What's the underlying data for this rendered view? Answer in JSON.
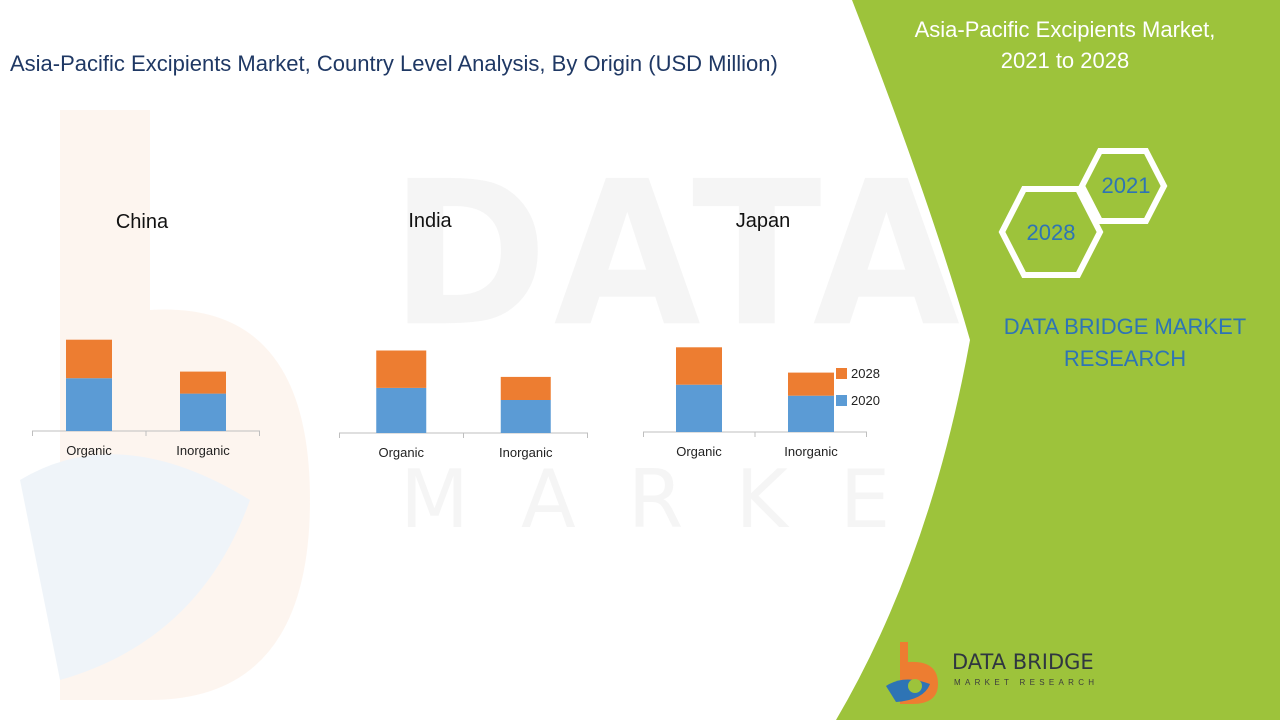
{
  "header": {
    "title": "Asia-Pacific Excipients Market, Country Level Analysis, By Origin (USD Million)"
  },
  "panel": {
    "title_line1": "Asia-Pacific Excipients Market,",
    "title_line2": "2021 to 2028",
    "hex_a": "2021",
    "hex_b": "2028",
    "brand_line1": "DATA BRIDGE MARKET",
    "brand_line2": "RESEARCH"
  },
  "logo": {
    "name": "DATA BRIDGE",
    "tagline": "MARKET RESEARCH"
  },
  "watermark": {
    "line1": "DATA BRIDGE",
    "line2": "MARKET RESEARCH"
  },
  "colors": {
    "series_2020": "#5b9bd5",
    "series_2028": "#ed7d31",
    "panel_green": "#9dc33b",
    "title_blue": "#1f3864",
    "brand_blue": "#2e74b5"
  },
  "legend": [
    {
      "label": "2028",
      "color": "#ed7d31"
    },
    {
      "label": "2020",
      "color": "#5b9bd5"
    }
  ],
  "chart_data": [
    {
      "type": "bar",
      "stacked": true,
      "title": "China",
      "categories": [
        "Organic",
        "Inorganic"
      ],
      "series": [
        {
          "name": "2020",
          "values": [
            48,
            34
          ]
        },
        {
          "name": "2028",
          "values": [
            83,
            54
          ]
        }
      ],
      "ylim": [
        0,
        140
      ]
    },
    {
      "type": "bar",
      "stacked": true,
      "title": "India",
      "categories": [
        "Organic",
        "Inorganic"
      ],
      "series": [
        {
          "name": "2020",
          "values": [
            41,
            30
          ]
        },
        {
          "name": "2028",
          "values": [
            75,
            51
          ]
        }
      ],
      "ylim": [
        0,
        140
      ]
    },
    {
      "type": "bar",
      "stacked": true,
      "title": "Japan",
      "categories": [
        "Organic",
        "Inorganic"
      ],
      "series": [
        {
          "name": "2020",
          "values": [
            43,
            33
          ]
        },
        {
          "name": "2028",
          "values": [
            77,
            54
          ]
        }
      ],
      "ylim": [
        0,
        140
      ]
    }
  ]
}
